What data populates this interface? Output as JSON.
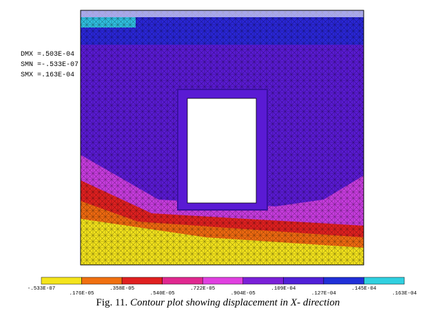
{
  "stats": [
    "DMX =.503E-04",
    "SMN =-.533E-07",
    "SMX =.163E-04"
  ],
  "legend": {
    "labels": [
      "-.533E-07",
      ".176E-05",
      ".358E-05",
      ".540E-05",
      ".722E-05",
      ".904E-05",
      ".109E-04",
      ".127E-04",
      ".145E-04",
      ".163E-04"
    ],
    "colors": [
      "#f4e41c",
      "#f07010",
      "#e02020",
      "#e02890",
      "#e040e0",
      "#7a20d8",
      "#5020d8",
      "#2030d8",
      "#30d0e0"
    ]
  },
  "caption": {
    "label": "Fig. 11.",
    "text": "Contour plot showing displacement in X- direction"
  }
}
